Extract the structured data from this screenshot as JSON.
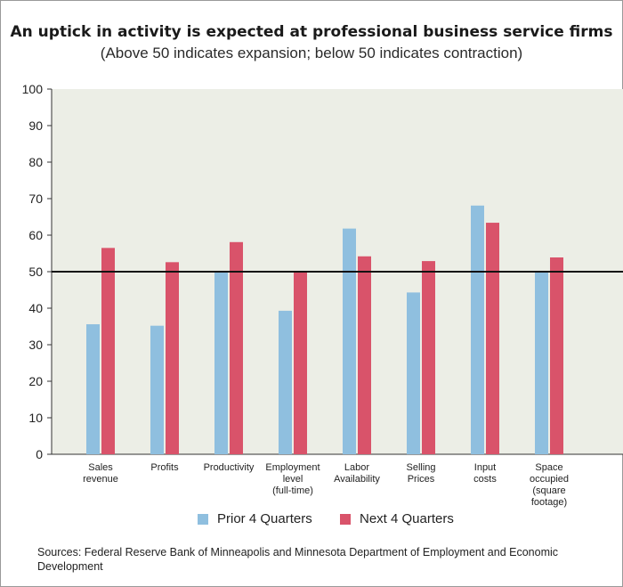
{
  "title": "An uptick in activity is expected at professional business service firms",
  "subtitle": "(Above 50 indicates expansion; below 50 indicates contraction)",
  "sources": "Sources: Federal Reserve Bank of Minneapolis and Minnesota Department of Employment and Economic Development",
  "colors": {
    "plot_background": "#eceee6",
    "prior": "#8fbfdf",
    "next": "#d9536a",
    "reference_line": "#111111"
  },
  "chart_data": {
    "type": "bar",
    "categories": [
      [
        "Sales",
        "revenue"
      ],
      [
        "Profits"
      ],
      [
        "Productivity"
      ],
      [
        "Employment",
        "level",
        "(full-time)"
      ],
      [
        "Labor",
        "Availability"
      ],
      [
        "Selling",
        "Prices"
      ],
      [
        "Input",
        "costs"
      ],
      [
        "Space",
        "occupied",
        "(square",
        "footage)"
      ]
    ],
    "series": [
      {
        "name": "Prior 4 Quarters",
        "values": [
          35.6,
          35.2,
          50.0,
          39.3,
          61.8,
          44.3,
          68.1,
          50.0
        ]
      },
      {
        "name": "Next 4 Quarters",
        "values": [
          56.5,
          52.6,
          58.1,
          50.0,
          54.2,
          52.9,
          63.4,
          53.9
        ]
      }
    ],
    "ylim": [
      0,
      100
    ],
    "yticks": [
      0,
      10,
      20,
      30,
      40,
      50,
      60,
      70,
      80,
      90,
      100
    ],
    "reference_line": 50,
    "grid": false,
    "legend_position": "bottom"
  }
}
